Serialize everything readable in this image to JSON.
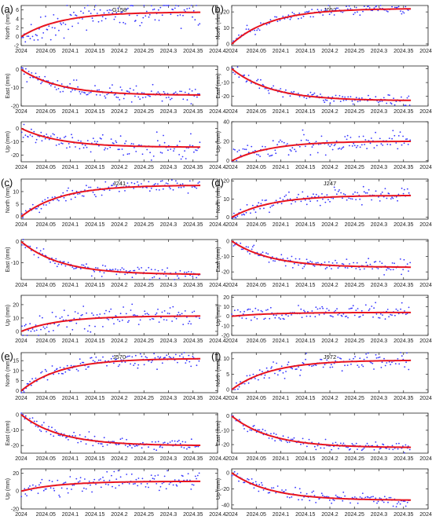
{
  "figure": {
    "x_ticks": [
      2024,
      2024.05,
      2024.1,
      2024.15,
      2024.2,
      2024.25,
      2024.3,
      2024.35,
      2024.4
    ],
    "x_tick_labels": [
      "2024",
      "2024.05",
      "2024.1",
      "2024.15",
      "2024.2",
      "2024.25",
      "2024.3",
      "2024.35",
      "2024.4"
    ],
    "x_range": [
      2024,
      2024.4
    ],
    "colors": {
      "fit": "#e8141e",
      "points": "#3333ff",
      "axis": "#222222"
    }
  },
  "chart_data": [
    {
      "panel": "a",
      "panel_label": "(a)",
      "station": "G158",
      "component": "North",
      "ylabel": "North (mm)",
      "type": "scatter+fit",
      "ylim": [
        -2,
        7
      ],
      "yticks": [
        -2,
        0,
        2,
        4,
        6
      ],
      "fit": {
        "start": 0,
        "end": 5.5
      },
      "noise": 1.6
    },
    {
      "panel": "a",
      "station": "G158",
      "component": "East",
      "ylabel": "East (mm)",
      "type": "scatter+fit",
      "ylim": [
        -20,
        2
      ],
      "yticks": [
        -20,
        -10,
        0
      ],
      "fit": {
        "start": 0,
        "end": -14
      },
      "noise": 1.8
    },
    {
      "panel": "a",
      "station": "G158",
      "component": "Up",
      "ylabel": "Up (mm)",
      "type": "scatter+fit",
      "ylim": [
        -25,
        5
      ],
      "yticks": [
        -20,
        -10,
        0
      ],
      "fit": {
        "start": 0,
        "end": -14
      },
      "noise": 4
    },
    {
      "panel": "b",
      "panel_label": "(b)",
      "station": "J052",
      "component": "North",
      "ylabel": "North (mm)",
      "type": "scatter+fit",
      "ylim": [
        -1,
        24
      ],
      "yticks": [
        0,
        10,
        20
      ],
      "fit": {
        "start": 0,
        "end": 22
      },
      "noise": 1.5
    },
    {
      "panel": "b",
      "station": "J052",
      "component": "East",
      "ylabel": "East (mm)",
      "type": "scatter+fit",
      "ylim": [
        -27,
        2
      ],
      "yticks": [
        -20,
        -10,
        0
      ],
      "fit": {
        "start": 0,
        "end": -23
      },
      "noise": 1.6
    },
    {
      "panel": "b",
      "station": "J052",
      "component": "Up",
      "ylabel": "Up (mm)",
      "type": "scatter+fit",
      "ylim": [
        -1,
        40
      ],
      "yticks": [
        0,
        20,
        40
      ],
      "fit": {
        "start": 0,
        "end": 20
      },
      "noise": 5
    },
    {
      "panel": "c",
      "panel_label": "(c)",
      "station": "J241",
      "component": "North",
      "ylabel": "North (mm)",
      "type": "scatter+fit",
      "ylim": [
        -1,
        15
      ],
      "yticks": [
        0,
        5,
        10
      ],
      "fit": {
        "start": 0,
        "end": 12.5
      },
      "noise": 1.2
    },
    {
      "panel": "c",
      "station": "J241",
      "component": "East",
      "ylabel": "East (mm)",
      "type": "scatter+fit",
      "ylim": [
        -18,
        1
      ],
      "yticks": [
        -10,
        0
      ],
      "fit": {
        "start": 0,
        "end": -15.5
      },
      "noise": 1.3
    },
    {
      "panel": "c",
      "station": "J241",
      "component": "Up",
      "ylabel": "Up (mm)",
      "type": "scatter+fit",
      "ylim": [
        -3,
        27
      ],
      "yticks": [
        0,
        10,
        20
      ],
      "fit": {
        "start": 0,
        "end": 11.5
      },
      "noise": 4
    },
    {
      "panel": "d",
      "panel_label": "(d)",
      "station": "J247",
      "component": "North",
      "ylabel": "North (mm)",
      "type": "scatter+fit",
      "ylim": [
        -1,
        21
      ],
      "yticks": [
        0,
        10,
        20
      ],
      "fit": {
        "start": 0,
        "end": 12
      },
      "noise": 2
    },
    {
      "panel": "d",
      "station": "J247",
      "component": "East",
      "ylabel": "East (mm)",
      "type": "scatter+fit",
      "ylim": [
        -25,
        1
      ],
      "yticks": [
        -20,
        -10,
        0
      ],
      "fit": {
        "start": 0,
        "end": -17
      },
      "noise": 2
    },
    {
      "panel": "d",
      "station": "J247",
      "component": "Up",
      "ylabel": "Up (mm)",
      "type": "scatter+fit",
      "ylim": [
        -20,
        22
      ],
      "yticks": [
        -20,
        -10,
        0,
        10,
        20
      ],
      "fit": {
        "start": 0,
        "end": 4
      },
      "noise": 4
    },
    {
      "panel": "e",
      "panel_label": "(e)",
      "station": "J570",
      "component": "North",
      "ylabel": "North (mm)",
      "type": "scatter+fit",
      "ylim": [
        -1,
        19
      ],
      "yticks": [
        0,
        5,
        10,
        15
      ],
      "fit": {
        "start": 0,
        "end": 16
      },
      "noise": 1.5
    },
    {
      "panel": "e",
      "station": "J570",
      "component": "East",
      "ylabel": "East (mm)",
      "type": "scatter+fit",
      "ylim": [
        -25,
        1
      ],
      "yticks": [
        -20,
        -10,
        0
      ],
      "fit": {
        "start": 0,
        "end": -20
      },
      "noise": 1.8
    },
    {
      "panel": "e",
      "station": "J570",
      "component": "Up",
      "ylabel": "Up (mm)",
      "type": "scatter+fit",
      "ylim": [
        -20,
        25
      ],
      "yticks": [
        -20,
        0,
        20
      ],
      "fit": {
        "start": 0,
        "end": 11
      },
      "noise": 5
    },
    {
      "panel": "f",
      "panel_label": "(f)",
      "station": "J972",
      "component": "North",
      "ylabel": "North (mm)",
      "type": "scatter+fit",
      "ylim": [
        -1,
        12
      ],
      "yticks": [
        0,
        5,
        10
      ],
      "fit": {
        "start": 0,
        "end": 9.5
      },
      "noise": 1.3
    },
    {
      "panel": "f",
      "station": "J972",
      "component": "East",
      "ylabel": "East (mm)",
      "type": "scatter+fit",
      "ylim": [
        -26,
        2
      ],
      "yticks": [
        -20,
        -10,
        0
      ],
      "fit": {
        "start": 0,
        "end": -22
      },
      "noise": 1.6
    },
    {
      "panel": "f",
      "station": "J972",
      "component": "Up",
      "ylabel": "Up (mm)",
      "type": "scatter+fit",
      "ylim": [
        -45,
        5
      ],
      "yticks": [
        -40,
        -20,
        0
      ],
      "fit": {
        "start": 0,
        "end": -34
      },
      "noise": 4
    }
  ]
}
